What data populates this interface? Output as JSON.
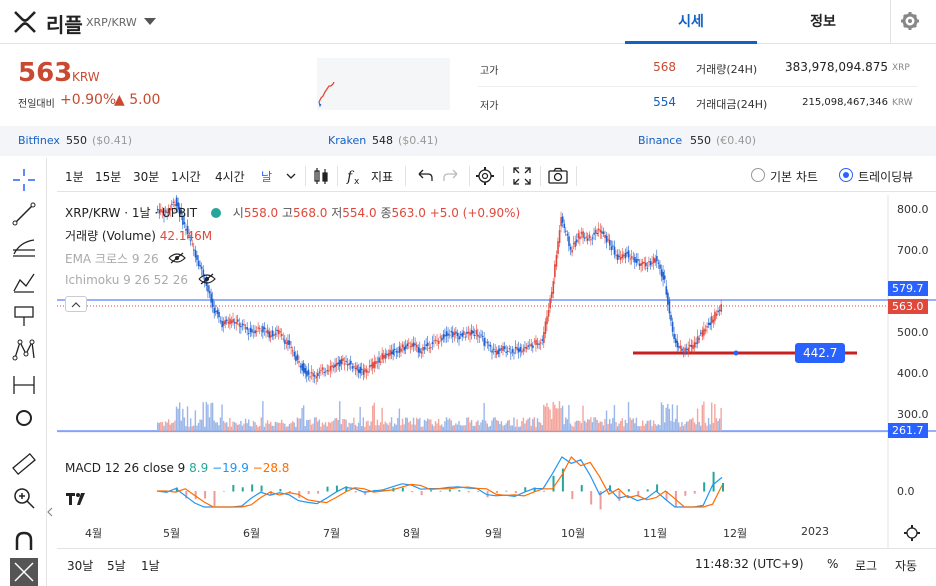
{
  "header": {
    "coin_name": "리플",
    "pair": "XRP/KRW",
    "tabs": [
      "시세",
      "정보"
    ]
  },
  "ticker": {
    "price": "563",
    "unit": "KRW",
    "change_label": "전일대비",
    "change_pct": "+0.90%",
    "change_amt": "▲ 5.00",
    "high_label": "고가",
    "high_value": "568",
    "low_label": "저가",
    "low_value": "554",
    "volume_label": "거래량(24H)",
    "volume_value": "383,978,094.875",
    "volume_unit": "XRP",
    "amount_label": "거래대금(24H)",
    "amount_value": "215,098,467,346",
    "amount_unit": "KRW"
  },
  "exchanges": [
    {
      "name": "Bitfinex",
      "price": "550",
      "change": "($0.41)"
    },
    {
      "name": "Kraken",
      "price": "548",
      "change": "($0.41)"
    },
    {
      "name": "Binance",
      "price": "550",
      "change": "(€0.40)"
    }
  ],
  "toolbar": {
    "intervals": [
      "1분",
      "15분",
      "30분",
      "1시간",
      "4시간",
      "날"
    ],
    "indicators_label": "지표",
    "basic_chart_label": "기본 차트",
    "tradingview_label": "트레이딩뷰"
  },
  "legend": {
    "pair": "XRP/KRW · 1날 · UPBIT",
    "open_k": "시",
    "open_v": "558.0",
    "high_k": "고",
    "high_v": "568.0",
    "low_k": "저",
    "low_v": "554.0",
    "close_k": "종",
    "close_v": "563.0",
    "chg": "+5.0 (+0.90%)",
    "volume_label": "거래량 (Volume)",
    "volume_value": "42.146M",
    "ema_label": "EMA 크로스 9 26",
    "ichimoku_label": "Ichimoku 9 26 52 26",
    "macd_label": "MACD 12 26 close 9",
    "macd_v1": "8.9",
    "macd_v2": "−19.9",
    "macd_v3": "−28.8"
  },
  "chart_data": {
    "type": "candlestick",
    "y_ticks": [
      "800.0",
      "700.0",
      "600.0",
      "500.0",
      "400.0",
      "300.0"
    ],
    "x_ticks": [
      "4월",
      "5월",
      "6월",
      "7월",
      "8월",
      "9월",
      "10월",
      "11월",
      "12월",
      "2023"
    ],
    "price_tags": {
      "line_upper": "579.7",
      "current": "563.0",
      "line_lower": "261.7",
      "drawn_level": "442.7"
    },
    "macd_tick": "0.0",
    "close_series": [
      800,
      790,
      820,
      760,
      700,
      640,
      560,
      520,
      530,
      515,
      500,
      510,
      495,
      500,
      470,
      430,
      400,
      395,
      410,
      420,
      430,
      415,
      400,
      420,
      440,
      450,
      460,
      470,
      455,
      470,
      480,
      500,
      490,
      495,
      500,
      470,
      450,
      460,
      455,
      460,
      470,
      480,
      600,
      780,
      700,
      740,
      730,
      750,
      720,
      680,
      690,
      670,
      660,
      680,
      620,
      480,
      450,
      470,
      500,
      530,
      563
    ],
    "colors": {
      "up": "#e0483c",
      "down": "#1e60d0",
      "line": "#2962ff"
    }
  },
  "bottombar": {
    "ranges": [
      "30날",
      "5날",
      "1날"
    ],
    "time": "11:48:32 (UTC+9)",
    "pct": "%",
    "log": "로그",
    "auto": "자동"
  }
}
